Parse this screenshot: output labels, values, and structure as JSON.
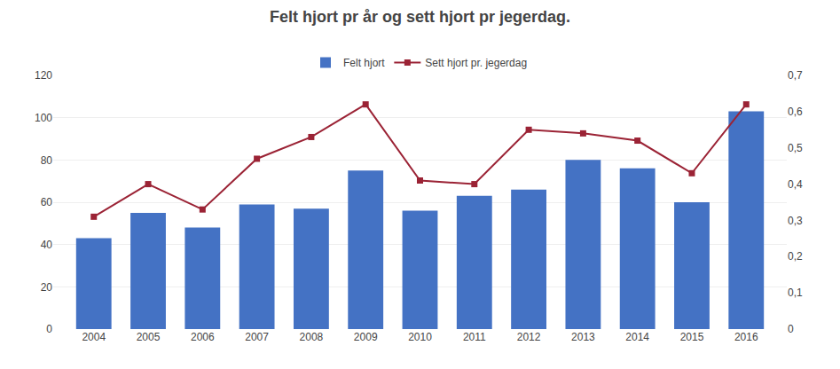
{
  "chart_data": {
    "type": "bar",
    "title": "Felt hjort pr år og sett hjort pr jegerdag.",
    "categories": [
      "2004",
      "2005",
      "2006",
      "2007",
      "2008",
      "2009",
      "2010",
      "2011",
      "2012",
      "2013",
      "2014",
      "2015",
      "2016"
    ],
    "series": [
      {
        "name": "Felt hjort",
        "type": "bar",
        "color": "#4472C4",
        "values": [
          43,
          55,
          48,
          59,
          57,
          75,
          56,
          63,
          66,
          80,
          76,
          60,
          103
        ]
      },
      {
        "name": "Sett hjort pr. jegerdag",
        "type": "line",
        "axis": "y2",
        "color": "#9B2335",
        "marker": "square",
        "values": [
          0.31,
          0.4,
          0.33,
          0.47,
          0.53,
          0.62,
          0.41,
          0.4,
          0.55,
          0.54,
          0.52,
          0.43,
          0.62
        ]
      }
    ],
    "ylim": [
      0,
      120
    ],
    "yticks": [
      0,
      20,
      40,
      60,
      80,
      100,
      120
    ],
    "y2lim": [
      0,
      0.7
    ],
    "y2ticks": [
      0,
      {
        "value": 0.1,
        "label": "0,1"
      },
      {
        "value": 0.2,
        "label": "0,2"
      },
      {
        "value": 0.3,
        "label": "0,3"
      },
      {
        "value": 0.4,
        "label": "0,4"
      },
      {
        "value": 0.5,
        "label": "0,5"
      },
      {
        "value": 0.6,
        "label": "0,6"
      },
      {
        "value": 0.7,
        "label": "0,7"
      }
    ],
    "grid": true,
    "legend": "top"
  }
}
